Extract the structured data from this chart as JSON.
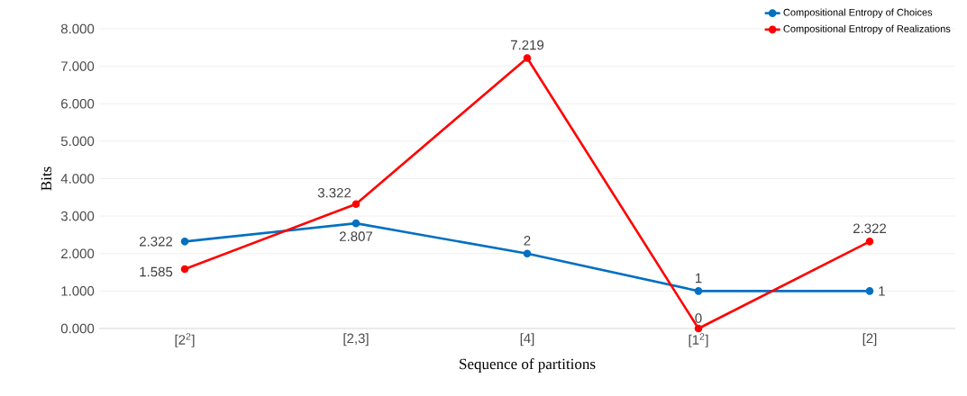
{
  "chart_data": {
    "type": "line",
    "xlabel": "Sequence of partitions",
    "ylabel": "Bits",
    "categories": [
      "[2$^{2}$]",
      "[2,3]",
      "[4]",
      "[1$^{2}$]",
      "[2]"
    ],
    "series": [
      {
        "name": "Compositional Entropy of Choices",
        "color": "#0070c0",
        "values": [
          2.322,
          2.807,
          2,
          1,
          1
        ]
      },
      {
        "name": "Compositional Entropy of Realizations",
        "color": "#ff0000",
        "values": [
          1.585,
          3.322,
          7.219,
          0,
          2.322
        ]
      }
    ],
    "ylim": [
      0,
      8
    ],
    "yticks": [
      {
        "value": 0,
        "label": "0.000"
      },
      {
        "value": 1,
        "label": "1.000"
      },
      {
        "value": 2,
        "label": "2.000"
      },
      {
        "value": 3,
        "label": "3.000"
      },
      {
        "value": 4,
        "label": "4.000"
      },
      {
        "value": 5,
        "label": "5.000"
      },
      {
        "value": 6,
        "label": "6.000"
      },
      {
        "value": 7,
        "label": "7.000"
      },
      {
        "value": 8,
        "label": "8.000"
      }
    ],
    "grid": "y",
    "legend": "top right",
    "marker": "circle",
    "data_labels": true
  }
}
